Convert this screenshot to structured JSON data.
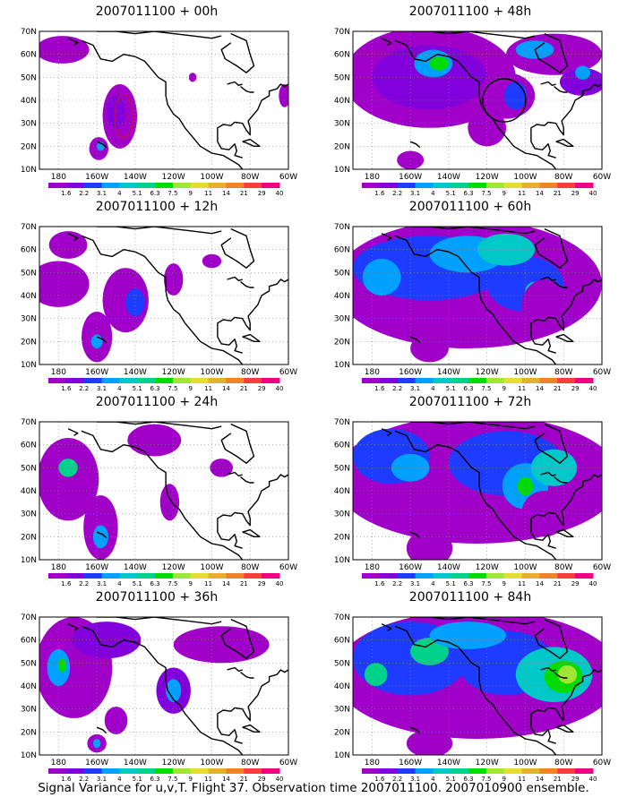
{
  "figure": {
    "caption": "Signal Variance for u,v,T. Flight 37. Observation time 2007011100. 2007010900 ensemble."
  },
  "axes": {
    "lat_labels": [
      "10N",
      "20N",
      "30N",
      "40N",
      "50N",
      "60N",
      "70N"
    ],
    "lon_labels": [
      "180",
      "160W",
      "140W",
      "120W",
      "100W",
      "80W",
      "60W"
    ]
  },
  "colorbar": {
    "labels": [
      "1.6",
      "2.2",
      "3.1",
      "4",
      "5.1",
      "6.3",
      "7.5",
      "9",
      "11",
      "14",
      "21",
      "29",
      "40"
    ],
    "colors": [
      "#a000c8",
      "#8200dc",
      "#1e3cff",
      "#00a0ff",
      "#00c8c8",
      "#00d28c",
      "#00dc00",
      "#a0e632",
      "#e6dc32",
      "#e6af2d",
      "#f08228",
      "#fa3c3c",
      "#f00082"
    ]
  },
  "panels": [
    {
      "title": "2007011100 + 00h",
      "column": 0,
      "row": 0,
      "annotation": "dashed-red-outline"
    },
    {
      "title": "2007011100 + 12h",
      "column": 0,
      "row": 1
    },
    {
      "title": "2007011100 + 24h",
      "column": 0,
      "row": 2
    },
    {
      "title": "2007011100 + 36h",
      "column": 0,
      "row": 3
    },
    {
      "title": "2007011100 + 48h",
      "column": 1,
      "row": 0,
      "annotation": "black-circle"
    },
    {
      "title": "2007011100 + 60h",
      "column": 1,
      "row": 1
    },
    {
      "title": "2007011100 + 72h",
      "column": 1,
      "row": 2
    },
    {
      "title": "2007011100 + 84h",
      "column": 1,
      "row": 3
    }
  ]
}
